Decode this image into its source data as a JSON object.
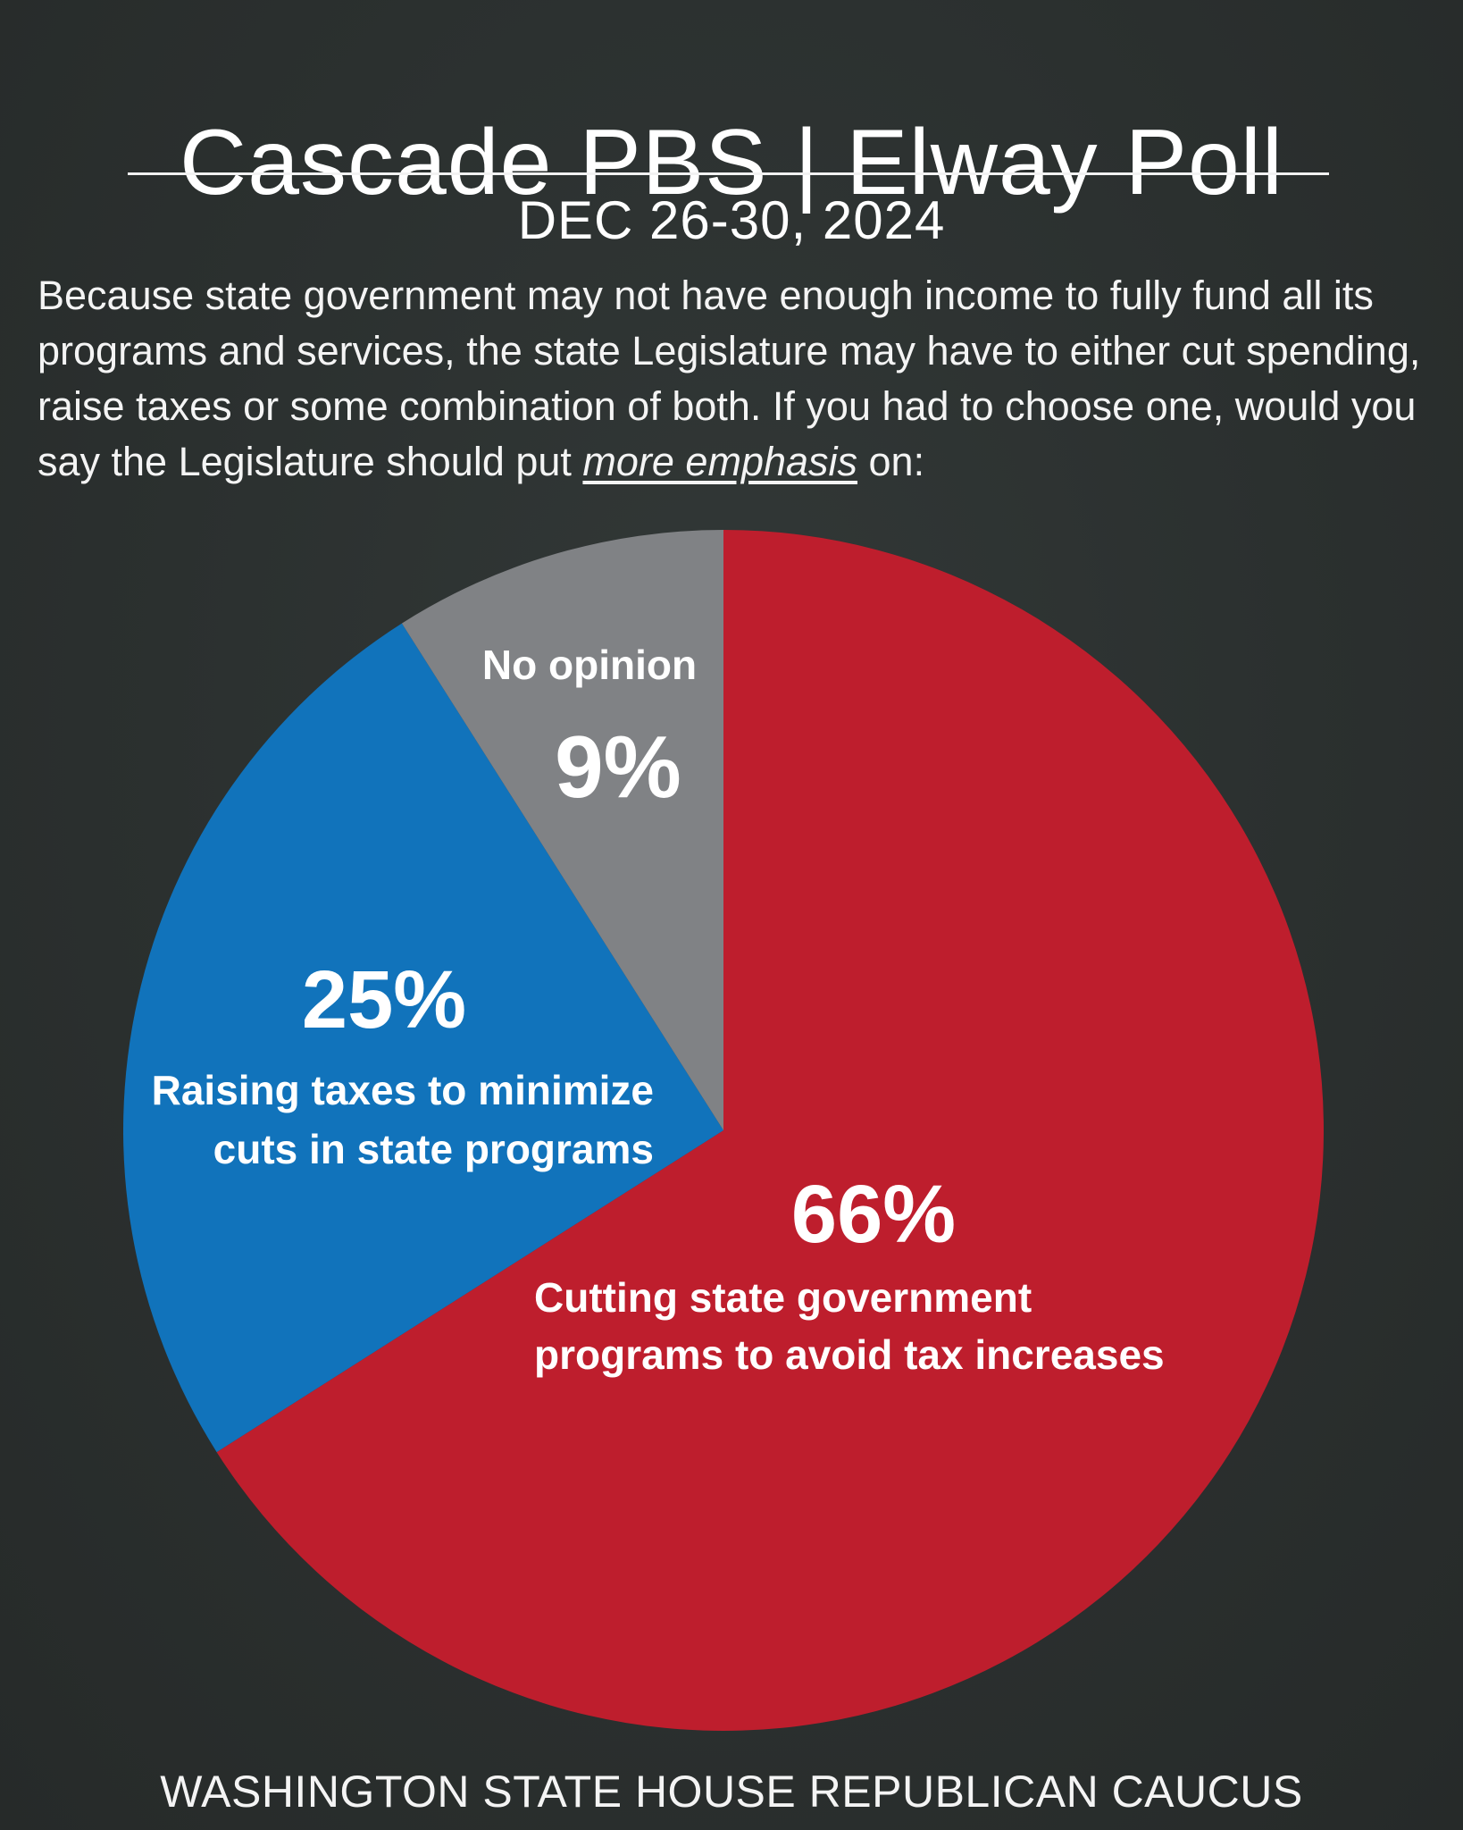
{
  "header": {
    "title": "Cascade PBS | Elway Poll",
    "date": "DEC 26-30, 2024"
  },
  "question": {
    "text_before": "Because state government may not have enough income to fully fund all its programs and services, the state Legislature may have to either cut spending, raise taxes or some combination of both. If you had to choose one, would you say the Legislature should put ",
    "emphasis": "more emphasis",
    "text_after": " on:"
  },
  "chart_data": {
    "type": "pie",
    "title": "",
    "slices": [
      {
        "value_label": "66%",
        "value": 66,
        "label_lines": [
          "Cutting state government",
          "programs to avoid tax increases"
        ],
        "color": "#be1e2d"
      },
      {
        "value_label": "25%",
        "value": 25,
        "label_lines": [
          "Raising taxes to minimize",
          "cuts in state programs"
        ],
        "color": "#1173bb"
      },
      {
        "value_label": "9%",
        "value": 9,
        "label_lines": [
          "No opinion"
        ],
        "color": "#808285"
      }
    ]
  },
  "footer": {
    "credit": "WASHINGTON STATE HOUSE REPUBLICAN CAUCUS"
  },
  "colors": {
    "background": "#2b302f",
    "text": "#ffffff"
  }
}
